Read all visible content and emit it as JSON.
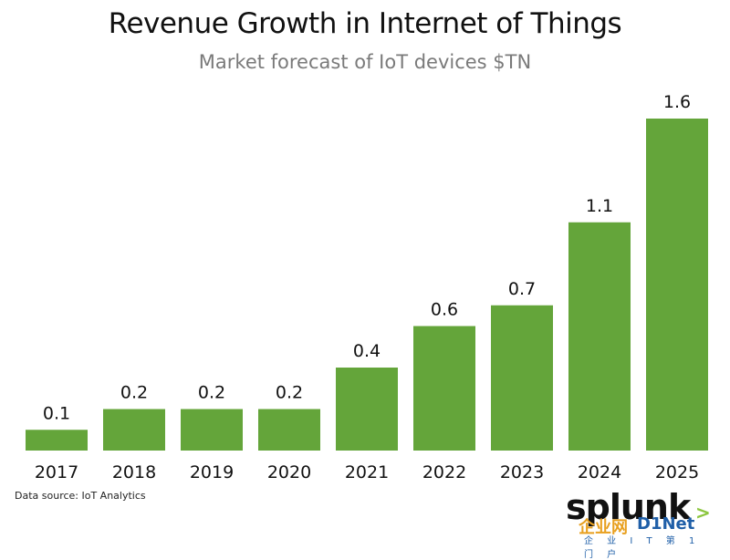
{
  "chart_data": {
    "type": "bar",
    "title": "Revenue Growth in Internet of Things",
    "subtitle": "Market forecast of IoT devices $TN",
    "categories": [
      "2017",
      "2018",
      "2019",
      "2020",
      "2021",
      "2022",
      "2023",
      "2024",
      "2025"
    ],
    "values": [
      0.1,
      0.2,
      0.2,
      0.2,
      0.4,
      0.6,
      0.7,
      1.1,
      1.6
    ],
    "data_labels": [
      "0.1",
      "0.2",
      "0.2",
      "0.2",
      "0.4",
      "0.6",
      "0.7",
      "1.1",
      "1.6"
    ],
    "xlabel": "",
    "ylabel": "",
    "ylim": [
      0,
      1.6
    ],
    "grid": false,
    "bar_color": "#64a53a"
  },
  "footer": {
    "source": "Data source: IoT Analytics"
  },
  "branding": {
    "logo": "splunk>",
    "watermark": "企业网D1Net",
    "watermark_sub": "企 业 I T 第 1 门 户"
  }
}
